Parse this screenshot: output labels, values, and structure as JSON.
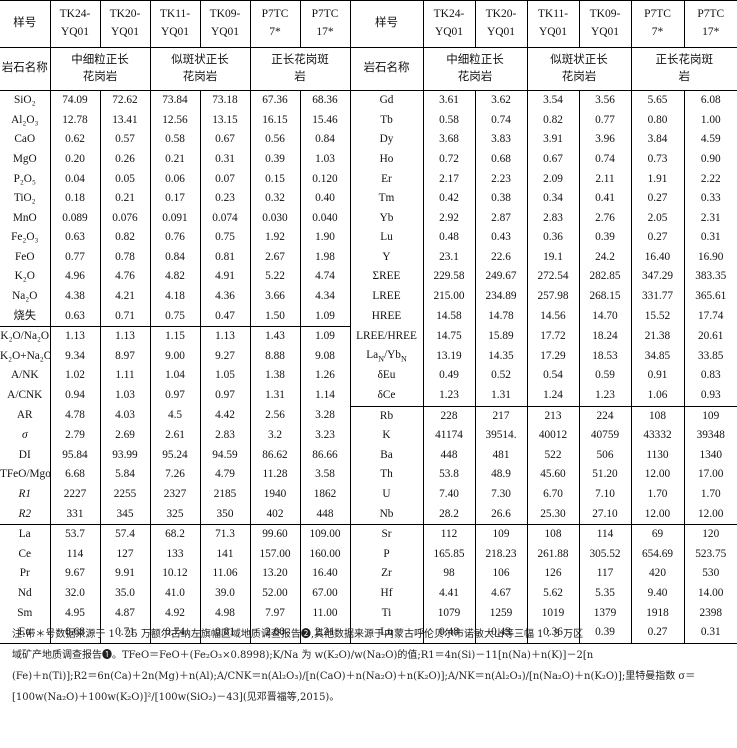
{
  "headers": {
    "sample_label": "样号",
    "samples": [
      "TK24-YQ01",
      "TK20-YQ01",
      "TK11-YQ01",
      "TK09-YQ01",
      "P7TC7*",
      "P7TC17*"
    ],
    "rock_label": "岩石名称",
    "rock_groups": [
      "中细粒正长花岗岩",
      "似斑状正长花岗岩",
      "正长花岗斑岩"
    ]
  },
  "left_rows": [
    [
      "SiO₂",
      "74.09",
      "72.62",
      "73.84",
      "73.18",
      "67.36",
      "68.36"
    ],
    [
      "Al₂O₃",
      "12.78",
      "13.41",
      "12.56",
      "13.15",
      "16.15",
      "15.46"
    ],
    [
      "CaO",
      "0.62",
      "0.57",
      "0.58",
      "0.67",
      "0.56",
      "0.84"
    ],
    [
      "MgO",
      "0.20",
      "0.26",
      "0.21",
      "0.31",
      "0.39",
      "1.03"
    ],
    [
      "P₂O₅",
      "0.04",
      "0.05",
      "0.06",
      "0.07",
      "0.15",
      "0.120"
    ],
    [
      "TiO₂",
      "0.18",
      "0.21",
      "0.17",
      "0.23",
      "0.32",
      "0.40"
    ],
    [
      "MnO",
      "0.089",
      "0.076",
      "0.091",
      "0.074",
      "0.030",
      "0.040"
    ],
    [
      "Fe₂O₃",
      "0.63",
      "0.82",
      "0.76",
      "0.75",
      "1.92",
      "1.90"
    ],
    [
      "FeO",
      "0.77",
      "0.78",
      "0.84",
      "0.81",
      "2.67",
      "1.98"
    ],
    [
      "K₂O",
      "4.96",
      "4.76",
      "4.82",
      "4.91",
      "5.22",
      "4.74"
    ],
    [
      "Na₂O",
      "4.38",
      "4.21",
      "4.18",
      "4.36",
      "3.66",
      "4.34"
    ],
    [
      "烧失",
      "0.63",
      "0.71",
      "0.75",
      "0.47",
      "1.50",
      "1.09"
    ],
    [
      "K₂O/Na₂O",
      "1.13",
      "1.13",
      "1.15",
      "1.13",
      "1.43",
      "1.09"
    ],
    [
      "K₂O+Na₂O",
      "9.34",
      "8.97",
      "9.00",
      "9.27",
      "8.88",
      "9.08"
    ],
    [
      "A/NK",
      "1.02",
      "1.11",
      "1.04",
      "1.05",
      "1.38",
      "1.26"
    ],
    [
      "A/CNK",
      "0.94",
      "1.03",
      "0.97",
      "0.97",
      "1.31",
      "1.14"
    ],
    [
      "AR",
      "4.78",
      "4.03",
      "4.5",
      "4.42",
      "2.56",
      "3.28"
    ],
    [
      "σ",
      "2.79",
      "2.69",
      "2.61",
      "2.83",
      "3.2",
      "3.23"
    ],
    [
      "DI",
      "95.84",
      "93.99",
      "95.24",
      "94.59",
      "86.62",
      "86.66"
    ],
    [
      "TFeO/Mgo",
      "6.68",
      "5.84",
      "7.26",
      "4.79",
      "11.28",
      "3.58"
    ],
    [
      "R1",
      "2227",
      "2255",
      "2327",
      "2185",
      "1940",
      "1862"
    ],
    [
      "R2",
      "331",
      "345",
      "325",
      "350",
      "402",
      "448"
    ],
    [
      "La",
      "53.7",
      "57.4",
      "68.2",
      "71.3",
      "99.60",
      "109.00"
    ],
    [
      "Ce",
      "114",
      "127",
      "133",
      "141",
      "157.00",
      "160.00"
    ],
    [
      "Pr",
      "9.67",
      "9.91",
      "10.12",
      "11.06",
      "13.20",
      "16.40"
    ],
    [
      "Nd",
      "32.0",
      "35.0",
      "41.0",
      "39.0",
      "52.00",
      "67.00"
    ],
    [
      "Sm",
      "4.95",
      "4.87",
      "4.92",
      "4.98",
      "7.97",
      "11.00"
    ],
    [
      "Eu",
      "0.68",
      "0.71",
      "0.74",
      "0.81",
      "2.00",
      "2.21"
    ]
  ],
  "right_rows": [
    [
      "Gd",
      "3.61",
      "3.62",
      "3.54",
      "3.56",
      "5.65",
      "6.08"
    ],
    [
      "Tb",
      "0.58",
      "0.74",
      "0.82",
      "0.77",
      "0.80",
      "1.00"
    ],
    [
      "Dy",
      "3.68",
      "3.83",
      "3.91",
      "3.96",
      "3.84",
      "4.59"
    ],
    [
      "Ho",
      "0.72",
      "0.68",
      "0.67",
      "0.74",
      "0.73",
      "0.90"
    ],
    [
      "Er",
      "2.17",
      "2.23",
      "2.09",
      "2.11",
      "1.91",
      "2.22"
    ],
    [
      "Tm",
      "0.42",
      "0.38",
      "0.34",
      "0.41",
      "0.27",
      "0.33"
    ],
    [
      "Yb",
      "2.92",
      "2.87",
      "2.83",
      "2.76",
      "2.05",
      "2.31"
    ],
    [
      "Lu",
      "0.48",
      "0.43",
      "0.36",
      "0.39",
      "0.27",
      "0.31"
    ],
    [
      "Y",
      "23.1",
      "22.6",
      "19.1",
      "24.2",
      "16.40",
      "16.90"
    ],
    [
      "ΣREE",
      "229.58",
      "249.67",
      "272.54",
      "282.85",
      "347.29",
      "383.35"
    ],
    [
      "LREE",
      "215.00",
      "234.89",
      "257.98",
      "268.15",
      "331.77",
      "365.61"
    ],
    [
      "HREE",
      "14.58",
      "14.78",
      "14.56",
      "14.70",
      "15.52",
      "17.74"
    ],
    [
      "LREE/HREE",
      "14.75",
      "15.89",
      "17.72",
      "18.24",
      "21.38",
      "20.61"
    ],
    [
      "La_N/Yb_N",
      "13.19",
      "14.35",
      "17.29",
      "18.53",
      "34.85",
      "33.85"
    ],
    [
      "δEu",
      "0.49",
      "0.52",
      "0.54",
      "0.59",
      "0.91",
      "0.83"
    ],
    [
      "δCe",
      "1.23",
      "1.31",
      "1.24",
      "1.23",
      "1.06",
      "0.93"
    ],
    [
      "Rb",
      "228",
      "217",
      "213",
      "224",
      "108",
      "109"
    ],
    [
      "K",
      "41174",
      "39514.",
      "40012",
      "40759",
      "43332",
      "39348"
    ],
    [
      "Ba",
      "448",
      "481",
      "522",
      "506",
      "1130",
      "1340"
    ],
    [
      "Th",
      "53.8",
      "48.9",
      "45.60",
      "51.20",
      "12.00",
      "17.00"
    ],
    [
      "U",
      "7.40",
      "7.30",
      "6.70",
      "7.10",
      "1.70",
      "1.70"
    ],
    [
      "Nb",
      "28.2",
      "26.6",
      "25.30",
      "27.10",
      "12.00",
      "12.00"
    ],
    [
      "Sr",
      "112",
      "109",
      "108",
      "114",
      "69",
      "120"
    ],
    [
      "P",
      "165.85",
      "218.23",
      "261.88",
      "305.52",
      "654.69",
      "523.75"
    ],
    [
      "Zr",
      "98",
      "106",
      "126",
      "117",
      "420",
      "530"
    ],
    [
      "Hf",
      "4.41",
      "4.67",
      "5.62",
      "5.35",
      "9.40",
      "14.00"
    ],
    [
      "Ti",
      "1079",
      "1259",
      "1019",
      "1379",
      "1918",
      "2398"
    ],
    [
      "Lu",
      "0.48",
      "0.43",
      "0.36",
      "0.39",
      "0.27",
      "0.31"
    ]
  ],
  "notes": {
    "line1": "注:带＊号数据来源于 1∶25 万额尔古纳左旗幅区域地质调查报告❷,其他数据来源于内蒙古呼伦贝尔市诺敏大山等三幅 1∶5 万区",
    "line2": "域矿产地质调查报告❶。TFeO＝FeO＋(Fe₂O₃×0.8998);K/Na 为 w(K₂O)/w(Na₂O)的值;R1＝4n(Si)－11[n(Na)＋n(K)]－2[n",
    "line3": "(Fe)＋n(Ti)];R2＝6n(Ca)＋2n(Mg)＋n(Al);A/CNK＝n(Al₂O₃)/[n(CaO)＋n(Na₂O)＋n(K₂O)];A/NK＝n(Al₂O₃)/[n(Na₂O)＋n(K₂O)];里特曼指数 σ＝",
    "line4": "[100w(Na₂O)＋100w(K₂O)]²/[100w(SiO₂)－43](见邓晋福等,2015)。"
  }
}
